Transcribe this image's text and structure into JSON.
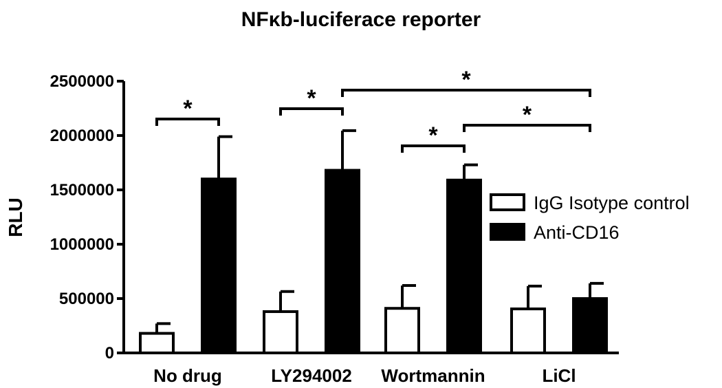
{
  "chart_data": {
    "type": "bar",
    "title": "NFκb-luciferace reporter",
    "xlabel": "",
    "ylabel": "RLU",
    "ylim": [
      0,
      2500000
    ],
    "yticks": [
      "0",
      "500000",
      "1000000",
      "1500000",
      "2000000",
      "2500000"
    ],
    "categories": [
      "No drug",
      "LY294002",
      "Wortmannin",
      "LiCl"
    ],
    "series": [
      {
        "name": "IgG Isotype control",
        "color": "#ffffff",
        "values": [
          180000,
          380000,
          410000,
          405000
        ],
        "errors": [
          90000,
          185000,
          210000,
          210000
        ]
      },
      {
        "name": "Anti-CD16",
        "color": "#000000",
        "values": [
          1600000,
          1680000,
          1590000,
          500000
        ],
        "errors": [
          390000,
          365000,
          140000,
          140000
        ]
      }
    ],
    "legend_position": "right",
    "significance": [
      {
        "label": "*",
        "from": "No drug IgG Isotype control",
        "to": "No drug Anti-CD16"
      },
      {
        "label": "*",
        "from": "LY294002 IgG Isotype control",
        "to": "LY294002 Anti-CD16"
      },
      {
        "label": "*",
        "from": "Wortmannin IgG Isotype control",
        "to": "Wortmannin Anti-CD16"
      },
      {
        "label": "*",
        "from": "LY294002 Anti-CD16",
        "to": "LiCl Anti-CD16"
      },
      {
        "label": "*",
        "from": "Wortmannin Anti-CD16",
        "to": "LiCl Anti-CD16"
      }
    ]
  }
}
